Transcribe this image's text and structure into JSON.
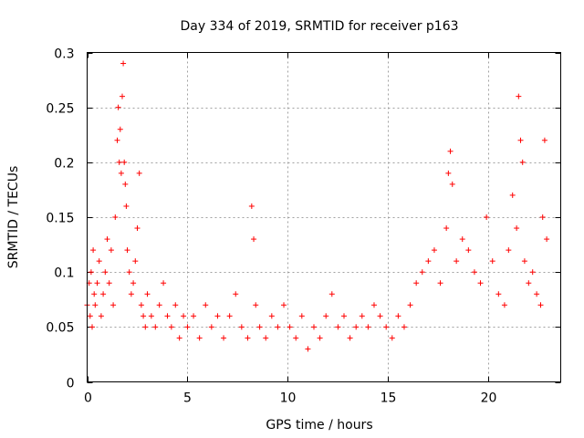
{
  "chart_data": {
    "type": "scatter",
    "title": "Day 334 of 2019, SRMTID for receiver p163",
    "xlabel": "GPS time / hours",
    "ylabel": "SRMTID / TECUs",
    "xlim": [
      0,
      23.6
    ],
    "ylim": [
      0,
      0.3
    ],
    "xticks": [
      0,
      5,
      10,
      15,
      20
    ],
    "xtick_labels": [
      "0",
      "5",
      "10",
      "15",
      "20"
    ],
    "yticks": [
      0,
      0.05,
      0.1,
      0.15,
      0.2,
      0.25,
      0.3
    ],
    "ytick_labels": [
      "0",
      "0.05",
      "0.1",
      "0.15",
      "0.2",
      "0.25",
      "0.3"
    ],
    "grid": true,
    "marker": "+",
    "color": "#ff0000",
    "series": [
      {
        "name": "SRMTID",
        "x": [
          0.0,
          0.1,
          0.15,
          0.2,
          0.25,
          0.3,
          0.35,
          0.4,
          0.5,
          0.6,
          0.7,
          0.8,
          0.9,
          1.0,
          1.1,
          1.2,
          1.3,
          1.4,
          1.5,
          1.55,
          1.6,
          1.65,
          1.7,
          1.75,
          1.8,
          1.85,
          1.9,
          1.95,
          2.0,
          2.1,
          2.2,
          2.3,
          2.4,
          2.5,
          2.6,
          2.7,
          2.8,
          2.9,
          3.0,
          3.2,
          3.4,
          3.6,
          3.8,
          4.0,
          4.2,
          4.4,
          4.6,
          4.8,
          5.0,
          5.3,
          5.6,
          5.9,
          6.2,
          6.5,
          6.8,
          7.1,
          7.4,
          7.7,
          8.0,
          8.2,
          8.3,
          8.4,
          8.6,
          8.9,
          9.2,
          9.5,
          9.8,
          10.1,
          10.4,
          10.7,
          11.0,
          11.3,
          11.6,
          11.9,
          12.2,
          12.5,
          12.8,
          13.1,
          13.4,
          13.7,
          14.0,
          14.3,
          14.6,
          14.9,
          15.2,
          15.5,
          15.8,
          16.1,
          16.4,
          16.7,
          17.0,
          17.3,
          17.6,
          17.9,
          18.0,
          18.1,
          18.2,
          18.4,
          18.7,
          19.0,
          19.3,
          19.6,
          19.9,
          20.2,
          20.5,
          20.8,
          21.0,
          21.2,
          21.4,
          21.5,
          21.6,
          21.7,
          21.8,
          22.0,
          22.2,
          22.4,
          22.6,
          22.7,
          22.8,
          22.9
        ],
        "y": [
          0.07,
          0.09,
          0.06,
          0.1,
          0.05,
          0.12,
          0.08,
          0.07,
          0.09,
          0.11,
          0.06,
          0.08,
          0.1,
          0.13,
          0.09,
          0.12,
          0.07,
          0.15,
          0.22,
          0.25,
          0.2,
          0.23,
          0.19,
          0.26,
          0.29,
          0.2,
          0.18,
          0.16,
          0.12,
          0.1,
          0.08,
          0.09,
          0.11,
          0.14,
          0.19,
          0.07,
          0.06,
          0.05,
          0.08,
          0.06,
          0.05,
          0.07,
          0.09,
          0.06,
          0.05,
          0.07,
          0.04,
          0.06,
          0.05,
          0.06,
          0.04,
          0.07,
          0.05,
          0.06,
          0.04,
          0.06,
          0.08,
          0.05,
          0.04,
          0.16,
          0.13,
          0.07,
          0.05,
          0.04,
          0.06,
          0.05,
          0.07,
          0.05,
          0.04,
          0.06,
          0.03,
          0.05,
          0.04,
          0.06,
          0.08,
          0.05,
          0.06,
          0.04,
          0.05,
          0.06,
          0.05,
          0.07,
          0.06,
          0.05,
          0.04,
          0.06,
          0.05,
          0.07,
          0.09,
          0.1,
          0.11,
          0.12,
          0.09,
          0.14,
          0.19,
          0.21,
          0.18,
          0.11,
          0.13,
          0.12,
          0.1,
          0.09,
          0.15,
          0.11,
          0.08,
          0.07,
          0.12,
          0.17,
          0.14,
          0.26,
          0.22,
          0.2,
          0.11,
          0.09,
          0.1,
          0.08,
          0.07,
          0.15,
          0.22,
          0.13
        ]
      }
    ]
  }
}
